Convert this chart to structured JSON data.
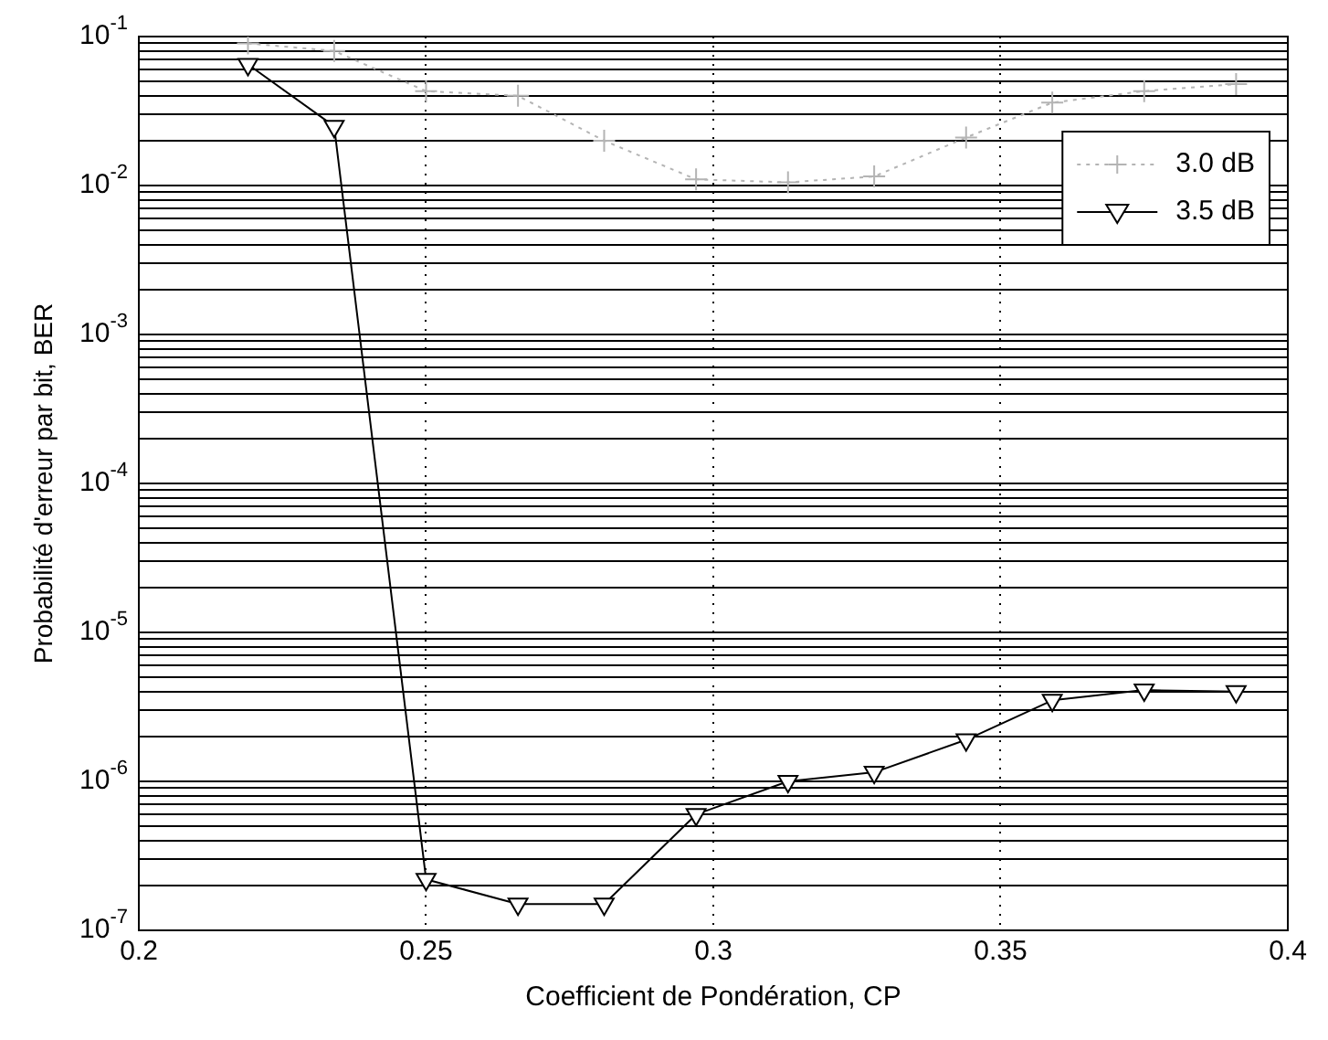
{
  "chart_data": {
    "type": "line",
    "xlabel": "Coefficient de Pondération, CP",
    "ylabel": "Probabilité d'erreur par bit, BER",
    "x": [
      0.219,
      0.234,
      0.25,
      0.266,
      0.281,
      0.297,
      0.313,
      0.328,
      0.344,
      0.359,
      0.375,
      0.391
    ],
    "series": [
      {
        "name": "3.0 dB",
        "color": "#b4b4b4",
        "marker": "cross",
        "line_style": "dotted",
        "values": [
          0.09,
          0.08,
          0.043,
          0.04,
          0.02,
          0.011,
          0.0105,
          0.0115,
          0.021,
          0.036,
          0.043,
          0.048
        ]
      },
      {
        "name": "3.5 dB",
        "color": "#000000",
        "marker": "triangle",
        "line_style": "solid",
        "values": [
          0.065,
          0.025,
          2.2e-07,
          1.5e-07,
          1.5e-07,
          6e-07,
          1e-06,
          1.15e-06,
          1.9e-06,
          3.5e-06,
          4.1e-06,
          4e-06
        ]
      }
    ],
    "xlim": [
      0.2,
      0.4
    ],
    "xticks": [
      0.2,
      0.25,
      0.3,
      0.35,
      0.4
    ],
    "ylim": [
      1e-07,
      0.1
    ],
    "log": "y",
    "grid": true,
    "legend": "top right",
    "yticks": [
      {
        "value": 1e-07,
        "label": "10$^{-7}$"
      },
      {
        "value": 2e-07,
        "label": null
      },
      {
        "value": 3e-07,
        "label": null
      },
      {
        "value": 4e-07,
        "label": null
      },
      {
        "value": 5e-07,
        "label": null
      },
      {
        "value": 6e-07,
        "label": null
      },
      {
        "value": 7e-07,
        "label": null
      },
      {
        "value": 8e-07,
        "label": null
      },
      {
        "value": 9e-07,
        "label": null
      },
      {
        "value": 1e-06,
        "label": "10$^{-6}$"
      },
      {
        "value": 2e-06,
        "label": null
      },
      {
        "value": 3e-06,
        "label": null
      },
      {
        "value": 4e-06,
        "label": null
      },
      {
        "value": 5e-06,
        "label": null
      },
      {
        "value": 6e-06,
        "label": null
      },
      {
        "value": 7e-06,
        "label": null
      },
      {
        "value": 8e-06,
        "label": null
      },
      {
        "value": 9e-06,
        "label": null
      },
      {
        "value": 1e-05,
        "label": "10$^{-5}$"
      },
      {
        "value": 2e-05,
        "label": null
      },
      {
        "value": 3e-05,
        "label": null
      },
      {
        "value": 4e-05,
        "label": null
      },
      {
        "value": 5e-05,
        "label": null
      },
      {
        "value": 6e-05,
        "label": null
      },
      {
        "value": 7e-05,
        "label": null
      },
      {
        "value": 8e-05,
        "label": null
      },
      {
        "value": 9e-05,
        "label": null
      },
      {
        "value": 0.0001,
        "label": "10$^{-4}$"
      },
      {
        "value": 0.0002,
        "label": null
      },
      {
        "value": 0.0003,
        "label": null
      },
      {
        "value": 0.0004,
        "label": null
      },
      {
        "value": 0.0005,
        "label": null
      },
      {
        "value": 0.0006,
        "label": null
      },
      {
        "value": 0.0007,
        "label": null
      },
      {
        "value": 0.0008,
        "label": null
      },
      {
        "value": 0.0009,
        "label": null
      },
      {
        "value": 0.001,
        "label": "10$^{-3}$"
      },
      {
        "value": 0.002,
        "label": null
      },
      {
        "value": 0.003,
        "label": null
      },
      {
        "value": 0.004,
        "label": null
      },
      {
        "value": 0.005,
        "label": null
      },
      {
        "value": 0.006,
        "label": null
      },
      {
        "value": 0.007,
        "label": null
      },
      {
        "value": 0.008,
        "label": null
      },
      {
        "value": 0.009,
        "label": null
      },
      {
        "value": 0.01,
        "label": "10$^{-2}$"
      },
      {
        "value": 0.02,
        "label": null
      },
      {
        "value": 0.03,
        "label": null
      },
      {
        "value": 0.04,
        "label": null
      },
      {
        "value": 0.05,
        "label": null
      },
      {
        "value": 0.06,
        "label": null
      },
      {
        "value": 0.07,
        "label": null
      },
      {
        "value": 0.08,
        "label": null
      },
      {
        "value": 0.09,
        "label": null
      },
      {
        "value": 0.1,
        "label": "10$^{-1}$"
      }
    ]
  }
}
